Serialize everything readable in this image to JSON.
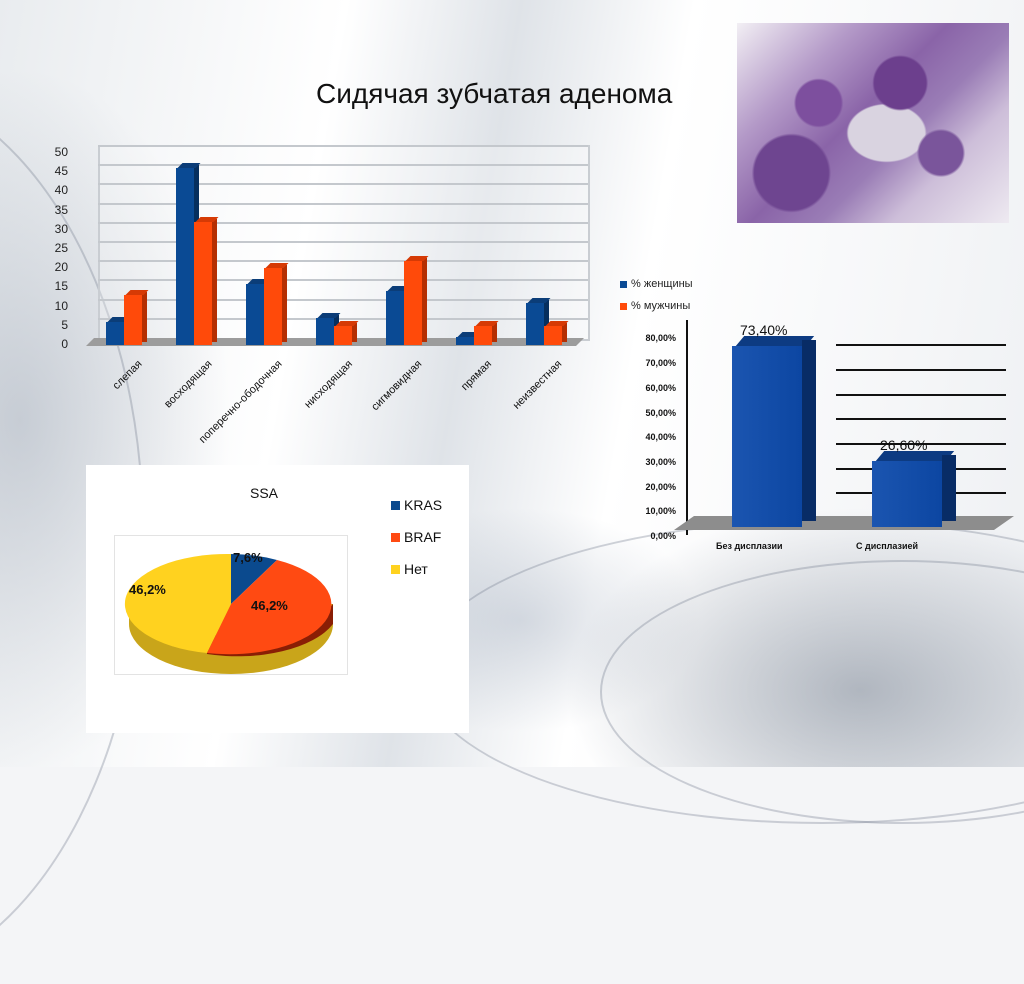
{
  "slide": {
    "title": "Сидячая зубчатая аденома",
    "image": {
      "name": "histology-image",
      "alt": "Гистологический срез"
    }
  },
  "colors": {
    "women": "#0a4a94",
    "men": "#ff4a0a",
    "kras": "#0b4a8e",
    "braf": "#ff4a12",
    "net": "#ffd21f",
    "dysplasia_bar": "#0c46a2"
  },
  "chart_data": [
    {
      "type": "bar",
      "title": "",
      "categories": [
        "слепая",
        "восходящая",
        "поперечно-ободочная",
        "нисходящая",
        "сигмовидная",
        "прямая",
        "неизвестная"
      ],
      "series": [
        {
          "name": "% женщины",
          "values": [
            6,
            46,
            16,
            7,
            14,
            2,
            11
          ]
        },
        {
          "name": "% мужчины",
          "values": [
            13,
            32,
            20,
            5,
            22,
            5,
            5
          ]
        }
      ],
      "yticks": [
        "0",
        "5",
        "10",
        "15",
        "20",
        "25",
        "30",
        "35",
        "40",
        "45",
        "50"
      ],
      "ylim": [
        0,
        50
      ],
      "grid": true,
      "legend_position": "right",
      "style": "3d-clustered"
    },
    {
      "type": "bar",
      "title": "",
      "categories": [
        "Без дисплазии",
        "С дисплазией"
      ],
      "values": [
        73.4,
        26.6
      ],
      "data_labels": [
        "73,40%",
        "26,60%"
      ],
      "yticks": [
        "0,00%",
        "10,00%",
        "20,00%",
        "30,00%",
        "40,00%",
        "50,00%",
        "60,00%",
        "70,00%",
        "80,00%"
      ],
      "ylim": [
        0,
        80
      ],
      "grid": true,
      "style": "3d-column"
    },
    {
      "type": "pie",
      "title": "SSA",
      "labels": [
        "KRAS",
        "BRAF",
        "Нет"
      ],
      "values": [
        7.6,
        46.2,
        46.2
      ],
      "data_labels": [
        "7,6%",
        "46,2%",
        "46,2%"
      ],
      "legend_position": "right",
      "style": "3d-pie"
    }
  ],
  "legend1": {
    "women": "% женщины",
    "men": "% мужчины"
  },
  "pie_legend": [
    "KRAS",
    "BRAF",
    "Нет"
  ]
}
